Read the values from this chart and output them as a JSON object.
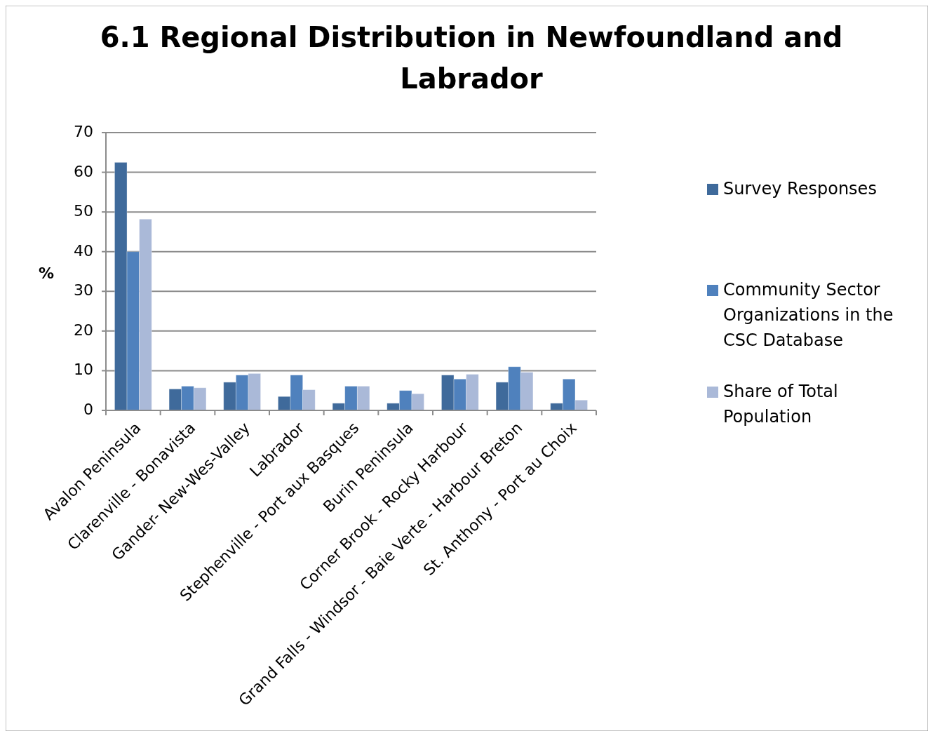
{
  "chart_data": {
    "type": "bar",
    "title": "6.1 Regional Distribution in Newfoundland and Labrador",
    "ylabel": "%",
    "categories": [
      "Avalon Peninsula",
      "Clarenville - Bonavista",
      "Gander- New-Wes-Valley",
      "Labrador",
      "Stephenville - Port aux Basques",
      "Burin Peninsula",
      "Corner Brook - Rocky Harbour",
      "Grand Falls - Windsor - Baie Verte - Harbour Breton",
      "St. Anthony - Port au Choix"
    ],
    "series": [
      {
        "name": "Survey Responses",
        "color": "#3f6a9b",
        "values": [
          62.5,
          5.4,
          7.1,
          3.5,
          1.8,
          1.8,
          8.9,
          7.1,
          1.8
        ]
      },
      {
        "name": "Community Sector Organizations in the CSC Database",
        "color": "#4f81bd",
        "values": [
          40,
          6.1,
          8.9,
          8.9,
          6.1,
          5.0,
          7.9,
          11.0,
          7.9
        ]
      },
      {
        "name": "Share of Total Population",
        "color": "#aab9d8",
        "values": [
          48.2,
          5.7,
          9.3,
          5.2,
          6.1,
          4.2,
          9.1,
          9.6,
          2.6
        ]
      }
    ],
    "ylim": [
      0,
      70
    ],
    "yticks": [
      0,
      10,
      20,
      30,
      40,
      50,
      60,
      70
    ],
    "grid": "y",
    "legend": "right"
  }
}
